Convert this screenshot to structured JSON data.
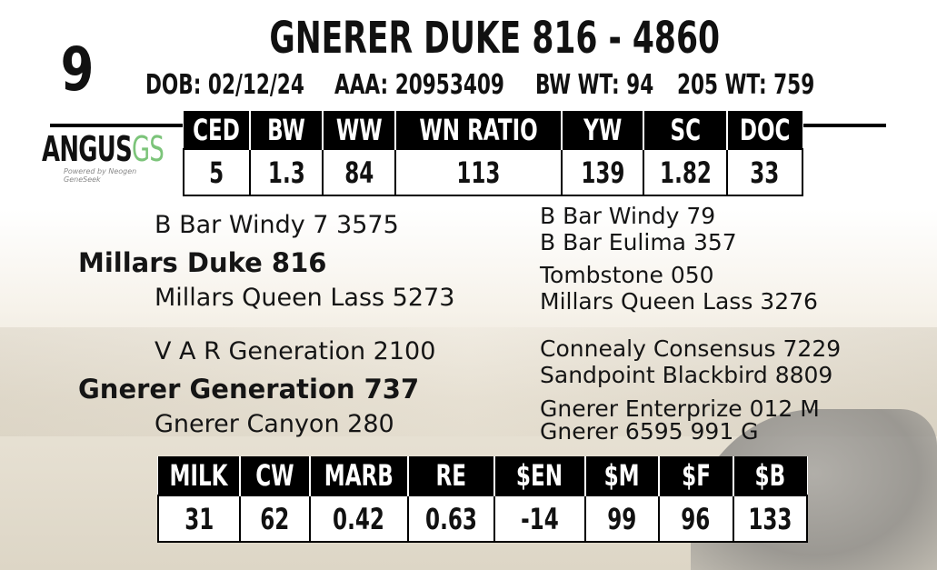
{
  "lot_number": "9",
  "title": "GNERER DUKE 816 - 4860",
  "info": {
    "dob": "DOB: 02/12/24",
    "aaa": "AAA: 20953409",
    "bw_wt": "BW WT: 94",
    "wt205": "205 WT: 759"
  },
  "logo": {
    "text_main": "ANGUS",
    "text_accent": "GS",
    "tagline": "Powered by Neogen GeneSeek",
    "accent_color": "#7cc47a"
  },
  "top_epds": {
    "headers": [
      "CED",
      "BW",
      "WW",
      "WN RATIO",
      "YW",
      "SC",
      "DOC"
    ],
    "values": [
      "5",
      "1.3",
      "84",
      "113",
      "139",
      "1.82",
      "33"
    ]
  },
  "pedigree": {
    "sire": "Millars Duke 816",
    "sire_sire": "B Bar Windy 7 3575",
    "sire_dam": "Millars Queen Lass 5273",
    "sss": "B Bar Windy 79",
    "ssd": "B Bar Eulima 357",
    "sds": "Tombstone 050",
    "sdd": "Millars Queen Lass 3276",
    "dam": "Gnerer Generation 737",
    "dam_sire": "V A R Generation 2100",
    "dam_dam": "Gnerer Canyon 280",
    "dss": "Connealy Consensus 7229",
    "dsd": "Sandpoint Blackbird 8809",
    "dds": "Gnerer Enterprize 012 M",
    "ddd": "Gnerer 6595 991 G"
  },
  "bottom_epds": {
    "headers": [
      "MILK",
      "CW",
      "MARB",
      "RE",
      "$EN",
      "$M",
      "$F",
      "$B"
    ],
    "values": [
      "31",
      "62",
      "0.42",
      "0.63",
      "-14",
      "99",
      "96",
      "133"
    ]
  }
}
